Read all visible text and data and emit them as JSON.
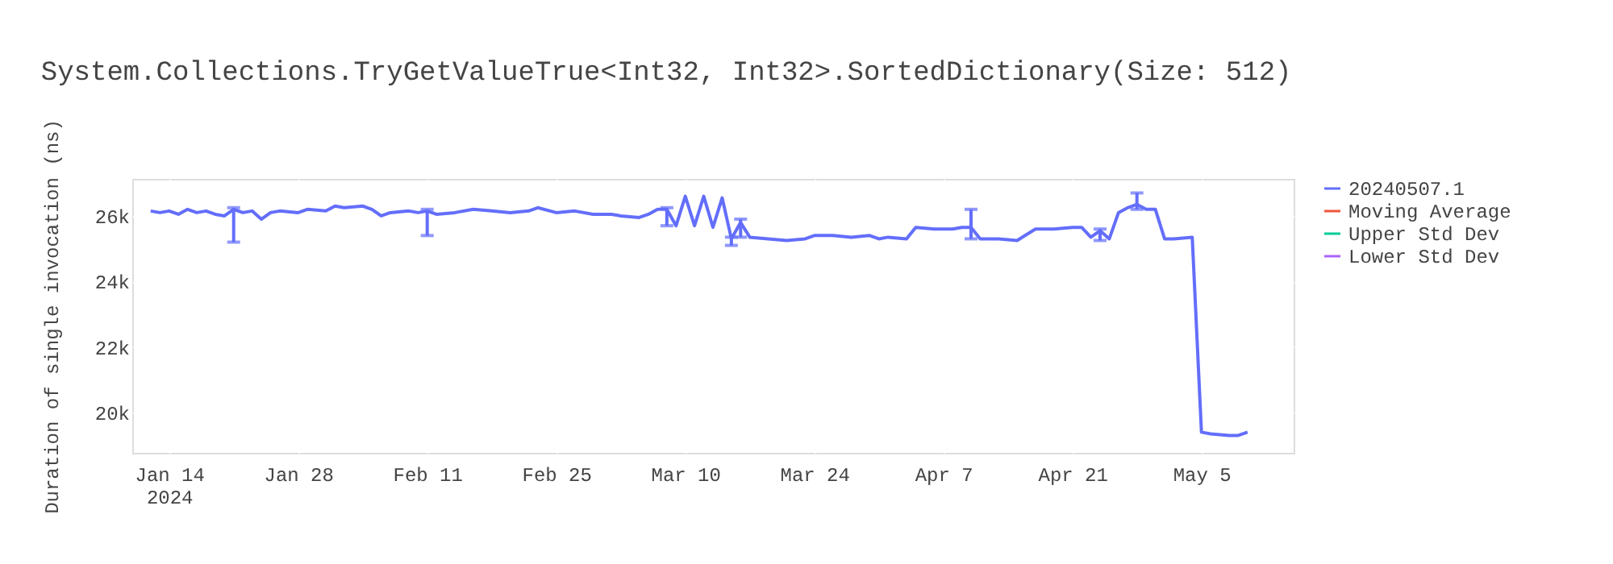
{
  "chart_data": {
    "type": "line",
    "title": "System.Collections.TryGetValueTrue<Int32, Int32>.SortedDictionary(Size: 512)",
    "ylabel": "Duration of single invocation (ns)",
    "x": [
      "2024-01-12",
      "2024-01-13",
      "2024-01-14",
      "2024-01-15",
      "2024-01-16",
      "2024-01-17",
      "2024-01-18",
      "2024-01-19",
      "2024-01-20",
      "2024-01-21",
      "2024-01-22",
      "2024-01-23",
      "2024-01-24",
      "2024-01-25",
      "2024-01-26",
      "2024-01-28",
      "2024-01-29",
      "2024-01-31",
      "2024-02-01",
      "2024-02-02",
      "2024-02-04",
      "2024-02-05",
      "2024-02-06",
      "2024-02-07",
      "2024-02-09",
      "2024-02-10",
      "2024-02-11",
      "2024-02-12",
      "2024-02-14",
      "2024-02-16",
      "2024-02-18",
      "2024-02-20",
      "2024-02-22",
      "2024-02-23",
      "2024-02-25",
      "2024-02-27",
      "2024-02-29",
      "2024-03-02",
      "2024-03-03",
      "2024-03-05",
      "2024-03-06",
      "2024-03-07",
      "2024-03-08",
      "2024-03-09",
      "2024-03-10",
      "2024-03-11",
      "2024-03-12",
      "2024-03-13",
      "2024-03-14",
      "2024-03-15",
      "2024-03-16",
      "2024-03-17",
      "2024-03-19",
      "2024-03-21",
      "2024-03-23",
      "2024-03-24",
      "2024-03-26",
      "2024-03-28",
      "2024-03-30",
      "2024-03-31",
      "2024-04-01",
      "2024-04-03",
      "2024-04-04",
      "2024-04-06",
      "2024-04-08",
      "2024-04-09",
      "2024-04-10",
      "2024-04-11",
      "2024-04-13",
      "2024-04-15",
      "2024-04-17",
      "2024-04-19",
      "2024-04-21",
      "2024-04-22",
      "2024-04-23",
      "2024-04-24",
      "2024-04-25",
      "2024-04-26",
      "2024-04-27",
      "2024-04-28",
      "2024-04-29",
      "2024-04-30",
      "2024-05-01",
      "2024-05-02",
      "2024-05-04",
      "2024-05-05",
      "2024-05-06",
      "2024-05-08",
      "2024-05-09",
      "2024-05-10"
    ],
    "series": [
      {
        "name": "20240507.1",
        "color": "#636efa",
        "values": [
          26150,
          26100,
          26150,
          26050,
          26200,
          26100,
          26150,
          26050,
          26000,
          26200,
          26100,
          26150,
          25900,
          26100,
          26150,
          26100,
          26200,
          26150,
          26300,
          26250,
          26300,
          26200,
          26000,
          26100,
          26150,
          26100,
          26150,
          26050,
          26100,
          26200,
          26150,
          26100,
          26150,
          26250,
          26100,
          26150,
          26050,
          26050,
          26000,
          25950,
          26050,
          26200,
          26200,
          25700,
          26600,
          25700,
          26600,
          25650,
          26550,
          25300,
          25800,
          25350,
          25300,
          25250,
          25300,
          25400,
          25400,
          25350,
          25400,
          25300,
          25350,
          25300,
          25650,
          25600,
          25600,
          25650,
          25650,
          25300,
          25300,
          25250,
          25600,
          25600,
          25650,
          25650,
          25350,
          25550,
          25300,
          26100,
          26250,
          26350,
          26200,
          26200,
          25300,
          25300,
          25350,
          19400,
          19350,
          19300,
          19300,
          19400
        ],
        "errors": [
          null,
          null,
          null,
          null,
          null,
          null,
          null,
          null,
          null,
          [
            25200,
            26250
          ],
          null,
          null,
          null,
          null,
          null,
          null,
          null,
          null,
          null,
          null,
          null,
          null,
          null,
          null,
          null,
          null,
          [
            25400,
            26200
          ],
          null,
          null,
          null,
          null,
          null,
          null,
          null,
          null,
          null,
          null,
          null,
          null,
          null,
          null,
          null,
          [
            25700,
            26250
          ],
          null,
          null,
          null,
          null,
          null,
          null,
          [
            25100,
            25350
          ],
          [
            25350,
            25900
          ],
          null,
          null,
          null,
          null,
          null,
          null,
          null,
          null,
          null,
          null,
          null,
          null,
          null,
          null,
          null,
          [
            25300,
            26200
          ],
          null,
          null,
          null,
          null,
          null,
          null,
          null,
          null,
          [
            25250,
            25600
          ],
          null,
          null,
          null,
          [
            26200,
            26700
          ],
          null,
          null,
          null,
          null,
          null,
          null,
          null,
          null,
          null,
          null
        ]
      },
      {
        "name": "Moving Average",
        "color": "#ef553b",
        "values": [
          null,
          null,
          null,
          null,
          null,
          null,
          null,
          null,
          null,
          null,
          null,
          null,
          null,
          null,
          null,
          null,
          null,
          null,
          null,
          null,
          null,
          null,
          null,
          null,
          null,
          null,
          null,
          null,
          null,
          null,
          null,
          null,
          null,
          null,
          null,
          null,
          null,
          null,
          null,
          null,
          null,
          null,
          null,
          null,
          null,
          null,
          null,
          null,
          null,
          null,
          null,
          null,
          null,
          null,
          null,
          null,
          null,
          null,
          null,
          null,
          null,
          null,
          null,
          null,
          null,
          null,
          null,
          null,
          null,
          null,
          null,
          null,
          null,
          null,
          null,
          null,
          null,
          null,
          null,
          null,
          null,
          null,
          null,
          null,
          null,
          null,
          null,
          null,
          null,
          null
        ]
      },
      {
        "name": "Upper Std Dev",
        "color": "#00cc96",
        "values": [
          null,
          null,
          null,
          null,
          null,
          null,
          null,
          null,
          null,
          null,
          null,
          null,
          null,
          null,
          null,
          null,
          null,
          null,
          null,
          null,
          null,
          null,
          null,
          null,
          null,
          null,
          null,
          null,
          null,
          null,
          null,
          null,
          null,
          null,
          null,
          null,
          null,
          null,
          null,
          null,
          null,
          null,
          null,
          null,
          null,
          null,
          null,
          null,
          null,
          null,
          null,
          null,
          null,
          null,
          null,
          null,
          null,
          null,
          null,
          null,
          null,
          null,
          null,
          null,
          null,
          null,
          null,
          null,
          null,
          null,
          null,
          null,
          null,
          null,
          null,
          null,
          null,
          null,
          null,
          null,
          null,
          null,
          null,
          null,
          null,
          null,
          null,
          null,
          null,
          null
        ]
      },
      {
        "name": "Lower Std Dev",
        "color": "#ab63fa",
        "values": [
          null,
          null,
          null,
          null,
          null,
          null,
          null,
          null,
          null,
          null,
          null,
          null,
          null,
          null,
          null,
          null,
          null,
          null,
          null,
          null,
          null,
          null,
          null,
          null,
          null,
          null,
          null,
          null,
          null,
          null,
          null,
          null,
          null,
          null,
          null,
          null,
          null,
          null,
          null,
          null,
          null,
          null,
          null,
          null,
          null,
          null,
          null,
          null,
          null,
          null,
          null,
          null,
          null,
          null,
          null,
          null,
          null,
          null,
          null,
          null,
          null,
          null,
          null,
          null,
          null,
          null,
          null,
          null,
          null,
          null,
          null,
          null,
          null,
          null,
          null,
          null,
          null,
          null,
          null,
          null,
          null,
          null,
          null,
          null,
          null,
          null,
          null,
          null,
          null,
          null
        ]
      }
    ],
    "xlim": [
      "2024-01-10",
      "2024-05-15"
    ],
    "xticks": [
      {
        "value": "2024-01-14",
        "label": "Jan 14\n2024"
      },
      {
        "value": "2024-01-28",
        "label": "Jan 28"
      },
      {
        "value": "2024-02-11",
        "label": "Feb 11"
      },
      {
        "value": "2024-02-25",
        "label": "Feb 25"
      },
      {
        "value": "2024-03-10",
        "label": "Mar 10"
      },
      {
        "value": "2024-03-24",
        "label": "Mar 24"
      },
      {
        "value": "2024-04-07",
        "label": "Apr 7"
      },
      {
        "value": "2024-04-21",
        "label": "Apr 21"
      },
      {
        "value": "2024-05-05",
        "label": "May 5"
      }
    ],
    "ylim": [
      18770,
      27130
    ],
    "yticks": [
      {
        "value": 20000,
        "label": "20k"
      },
      {
        "value": 22000,
        "label": "22k"
      },
      {
        "value": 24000,
        "label": "24k"
      },
      {
        "value": 26000,
        "label": "26k"
      }
    ],
    "grid": true,
    "legend": "right",
    "marker": "none",
    "line_style": "solid"
  }
}
